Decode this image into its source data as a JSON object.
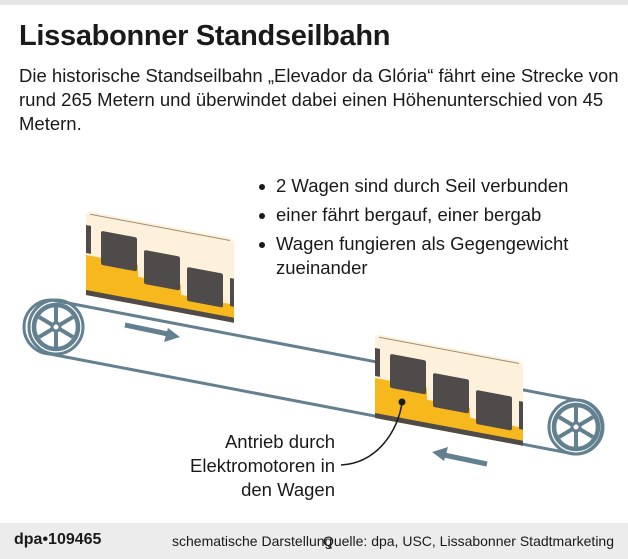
{
  "title": "Lissabonner Standseilbahn",
  "subtitle": "Die historische Standseilbahn „Elevador da Glória“ fährt eine Strecke von rund 265 Metern und überwindet dabei einen Höhenunterschied von 45 Metern.",
  "bullets": [
    "2 Wagen sind durch Seil verbunden",
    "einer fährt bergauf, einer bergab",
    "Wagen fungieren als Gegengewicht zueinander"
  ],
  "annotation": {
    "line1": "Antrieb durch",
    "line2": "Elektromotoren in",
    "line3": "den Wagen"
  },
  "footer": {
    "logo": "dpa•109465",
    "note": "schematische Darstellung",
    "source": "Quelle: dpa, USC, Lissabonner Stadtmarketing"
  },
  "colors": {
    "car_yellow": "#f6b81c",
    "car_cream": "#fdf1dc",
    "window": "#4f4b4b",
    "cable": "#62808f"
  }
}
